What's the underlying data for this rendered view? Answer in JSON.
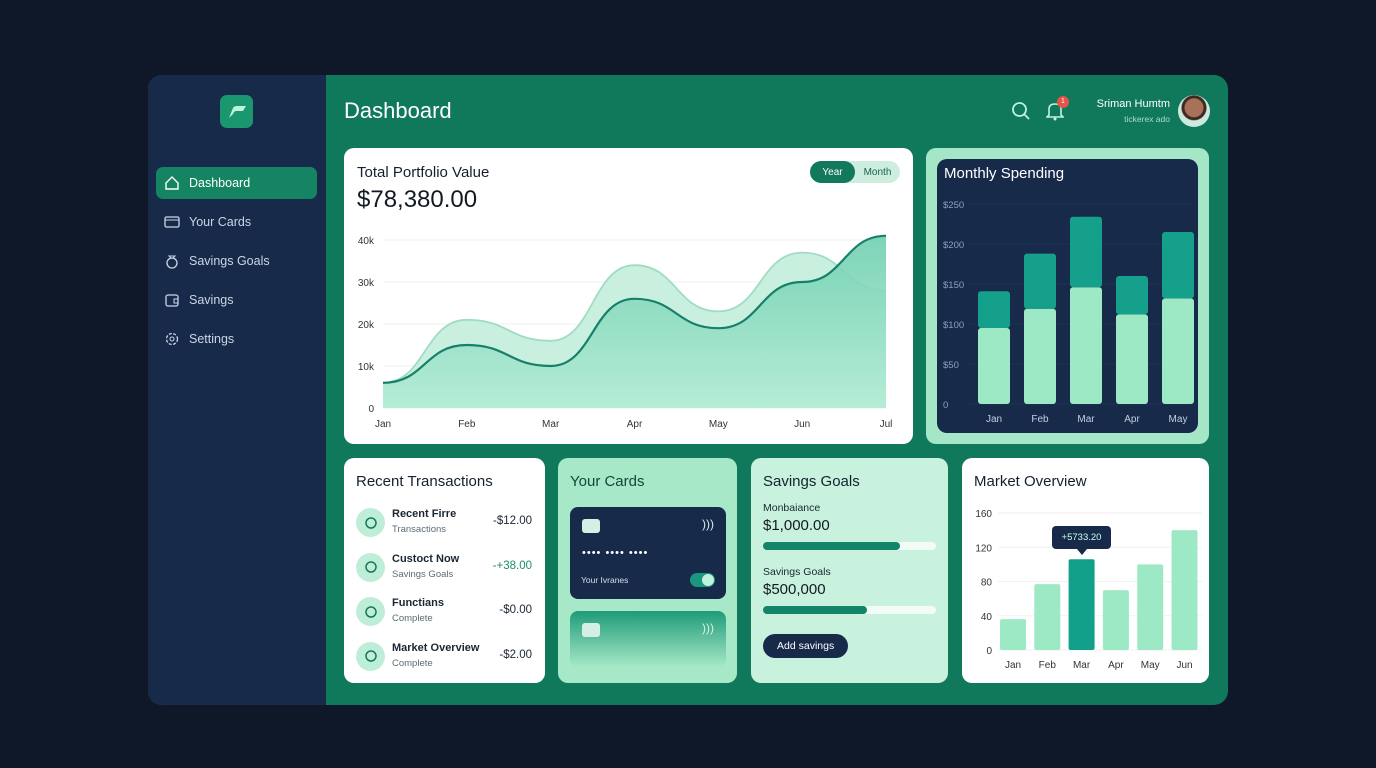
{
  "sidebar": {
    "items": [
      {
        "label": "Dashboard",
        "icon": "home-icon",
        "active": true
      },
      {
        "label": "Your Cards",
        "icon": "card-icon"
      },
      {
        "label": "Savings Goals",
        "icon": "money-bag-icon"
      },
      {
        "label": "Savings",
        "icon": "wallet-icon"
      },
      {
        "label": "Settings",
        "icon": "gear-icon"
      }
    ]
  },
  "header": {
    "title": "Dashboard",
    "notifications": "1",
    "user_name": "Sriman Humtm",
    "user_sub": "tickerex ado"
  },
  "portfolio": {
    "title": "Total Portfolio Value",
    "value": "$78,380.00",
    "toggle": [
      "Year",
      "Month"
    ],
    "active_toggle": "Year"
  },
  "spending": {
    "title": "Monthly Spending"
  },
  "transactions": {
    "title": "Recent Transactions",
    "items": [
      {
        "name": "Recent Firre",
        "sub": "Transactions",
        "amount": "-$12.00",
        "icon": "history-icon"
      },
      {
        "name": "Custoct Now",
        "sub": "Savings Goals",
        "amount": "-+38.00",
        "icon": "hand-coin-icon",
        "positive": true
      },
      {
        "name": "Functians",
        "sub": "Complete",
        "amount": "-$0.00",
        "icon": "calculator-icon"
      },
      {
        "name": "Market Overview",
        "sub": "Complete",
        "amount": "-$2.00",
        "icon": "trend-icon"
      }
    ]
  },
  "cards": {
    "title": "Your Cards",
    "number_mask": "•••• •••• ••••",
    "card_label": "Your Ivranes"
  },
  "savings": {
    "title": "Savings Goals",
    "goals": [
      {
        "label": "Monbaiance",
        "value": "$1,000.00",
        "progress": 0.79
      },
      {
        "label": "Savings Goals",
        "value": "$500,000",
        "progress": 0.6
      }
    ],
    "button": "Add savings"
  },
  "market": {
    "title": "Market Overview",
    "tooltip": "+5733.20"
  },
  "colors": {
    "accent": "#10795c",
    "sidebar": "#172a4a",
    "light": "#9fe6c3",
    "teal": "#12a08a"
  },
  "chart_data": [
    {
      "type": "area",
      "title": "Total Portfolio Value",
      "categories": [
        "Jan",
        "Feb",
        "Mar",
        "Apr",
        "May",
        "Jun",
        "Jul"
      ],
      "yticks": [
        "0",
        "10k",
        "20k",
        "30k",
        "40k"
      ],
      "ylim": [
        0,
        40000
      ],
      "grid": true,
      "series": [
        {
          "values": [
            6000,
            21000,
            16000,
            34000,
            23000,
            37000,
            28000
          ]
        },
        {
          "values": [
            6000,
            15000,
            10000,
            26000,
            19000,
            30000,
            41000
          ]
        }
      ]
    },
    {
      "type": "bar",
      "title": "Monthly Spending",
      "stacked": true,
      "categories": [
        "Jan",
        "Feb",
        "Mar",
        "Apr",
        "May"
      ],
      "yticks": [
        "0",
        "$50",
        "$100",
        "$150",
        "$200",
        "$250"
      ],
      "ylim": [
        0,
        250
      ],
      "series": [
        {
          "values": [
            95,
            119,
            146,
            112,
            132
          ]
        },
        {
          "values": [
            46,
            69,
            88,
            48,
            83
          ]
        }
      ]
    },
    {
      "type": "bar",
      "title": "Market Overview",
      "categories": [
        "Jan",
        "Feb",
        "Mar",
        "Apr",
        "May",
        "Jun"
      ],
      "values": [
        36,
        77,
        106,
        70,
        100,
        140
      ],
      "highlight": "Mar",
      "yticks": [
        "0",
        "40",
        "80",
        "120",
        "160"
      ],
      "ylim": [
        0,
        160
      ],
      "grid": true
    }
  ]
}
